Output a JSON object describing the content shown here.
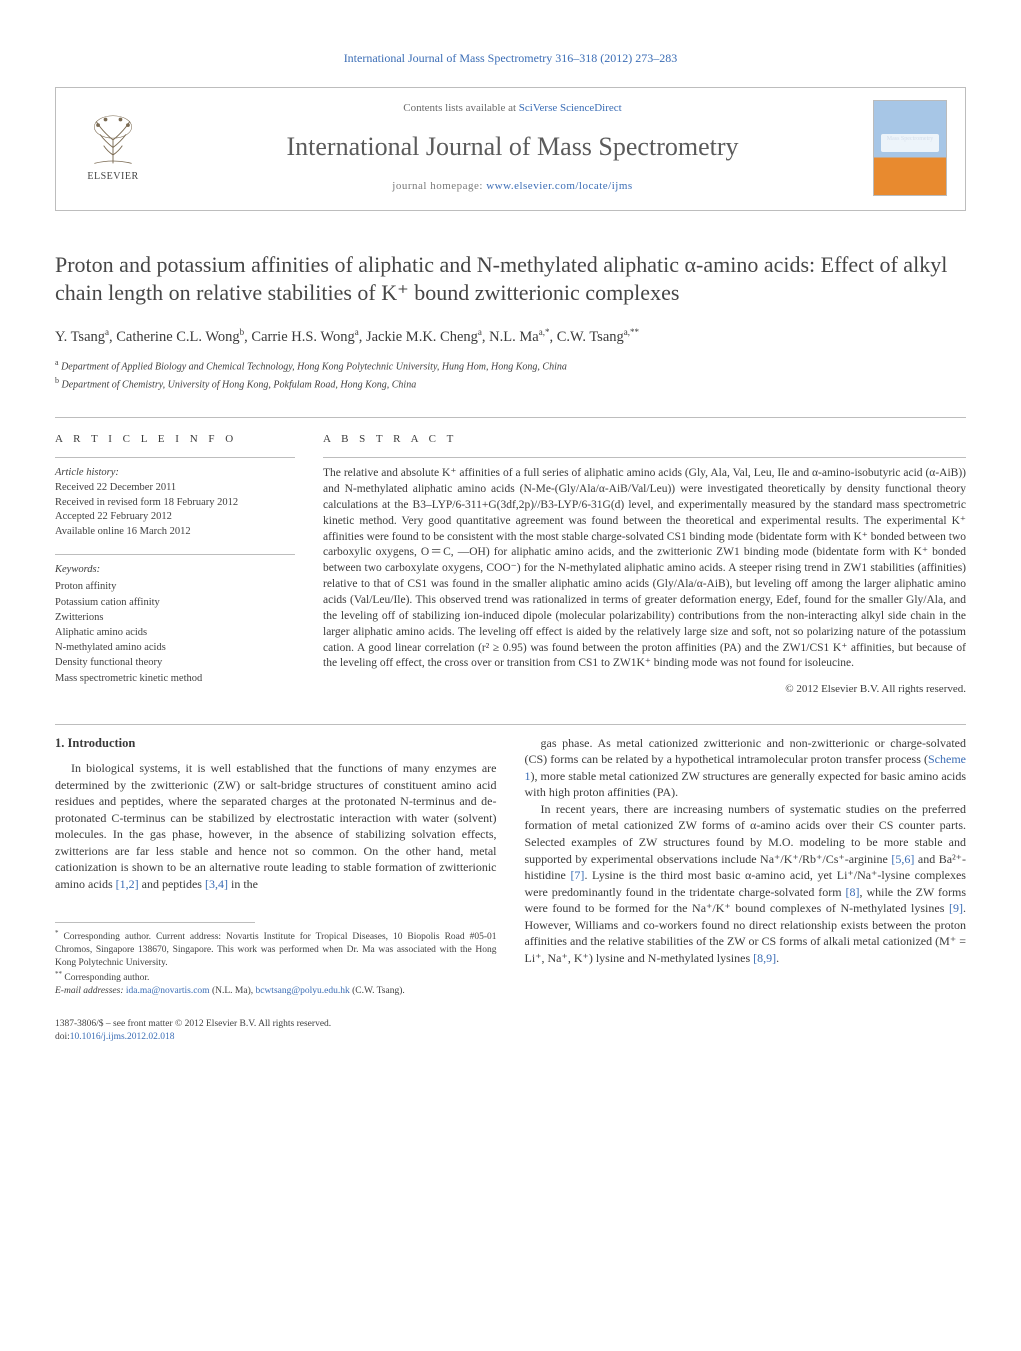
{
  "header": {
    "journal_ref": "International Journal of Mass Spectrometry 316–318 (2012) 273–283",
    "contents_prefix": "Contents lists available at ",
    "contents_link": "SciVerse ScienceDirect",
    "journal_name": "International Journal of Mass Spectrometry",
    "homepage_prefix": "journal homepage: ",
    "homepage_link": "www.elsevier.com/locate/ijms",
    "publisher": "ELSEVIER",
    "cover_caption": "Mass Spectrometry"
  },
  "article": {
    "title": "Proton and potassium affinities of aliphatic and N-methylated aliphatic α-amino acids: Effect of alkyl chain length on relative stabilities of K⁺ bound zwitterionic complexes",
    "authors_html": "Y. Tsang<sup>a</sup>, Catherine C.L. Wong<sup>b</sup>, Carrie H.S. Wong<sup>a</sup>, Jackie M.K. Cheng<sup>a</sup>, N.L. Ma<sup>a,*</sup>, C.W. Tsang<sup>a,**</sup>",
    "affiliations": [
      "Department of Applied Biology and Chemical Technology, Hong Kong Polytechnic University, Hung Hom, Hong Kong, China",
      "Department of Chemistry, University of Hong Kong, Pokfulam Road, Hong Kong, China"
    ],
    "aff_markers": [
      "a",
      "b"
    ]
  },
  "info": {
    "heading": "A R T I C L E   I N F O",
    "history_label": "Article history:",
    "history": [
      "Received 22 December 2011",
      "Received in revised form 18 February 2012",
      "Accepted 22 February 2012",
      "Available online 16 March 2012"
    ],
    "keywords_label": "Keywords:",
    "keywords": [
      "Proton affinity",
      "Potassium cation affinity",
      "Zwitterions",
      "Aliphatic amino acids",
      "N-methylated amino acids",
      "Density functional theory",
      "Mass spectrometric kinetic method"
    ]
  },
  "abstract": {
    "heading": "A B S T R A C T",
    "text": "The relative and absolute K⁺ affinities of a full series of aliphatic amino acids (Gly, Ala, Val, Leu, Ile and α-amino-isobutyric acid (α-AiB)) and N-methylated aliphatic amino acids (N-Me-(Gly/Ala/α-AiB/Val/Leu)) were investigated theoretically by density functional theory calculations at the B3–LYP/6-311+G(3df,2p)//B3-LYP/6-31G(d) level, and experimentally measured by the standard mass spectrometric kinetic method. Very good quantitative agreement was found between the theoretical and experimental results. The experimental K⁺ affinities were found to be consistent with the most stable charge-solvated CS1 binding mode (bidentate form with K⁺ bonded between two carboxylic oxygens, O＝C, —OH) for aliphatic amino acids, and the zwitterionic ZW1 binding mode (bidentate form with K⁺ bonded between two carboxylate oxygens, COO⁻) for the N-methylated aliphatic amino acids. A steeper rising trend in ZW1 stabilities (affinities) relative to that of CS1 was found in the smaller aliphatic amino acids (Gly/Ala/α-AiB), but leveling off among the larger aliphatic amino acids (Val/Leu/Ile). This observed trend was rationalized in terms of greater deformation energy, Edef, found for the smaller Gly/Ala, and the leveling off of stabilizing ion-induced dipole (molecular polarizability) contributions from the non-interacting alkyl side chain in the larger aliphatic amino acids. The leveling off effect is aided by the relatively large size and soft, not so polarizing nature of the potassium cation. A good linear correlation (r² ≥ 0.95) was found between the proton affinities (PA) and the ZW1/CS1 K⁺ affinities, but because of the leveling off effect, the cross over or transition from CS1 to ZW1K⁺ binding mode was not found for isoleucine.",
    "copyright": "© 2012 Elsevier B.V. All rights reserved."
  },
  "body": {
    "section_number": "1.",
    "section_title": "Introduction",
    "col1_p1": "In biological systems, it is well established that the functions of many enzymes are determined by the zwitterionic (ZW) or salt-bridge structures of constituent amino acid residues and peptides, where the separated charges at the protonated N-terminus and de-protonated C-terminus can be stabilized by electrostatic interaction with water (solvent) molecules. In the gas phase, however, in the absence of stabilizing solvation effects, zwitterions are far less stable and hence not so common. On the other hand, metal cationization is shown to be an alternative route leading to stable formation of zwitterionic amino acids [1,2] and peptides [3,4] in the",
    "col2_p1": "gas phase. As metal cationized zwitterionic and non-zwitterionic or charge-solvated (CS) forms can be related by a hypothetical intramolecular proton transfer process (Scheme 1), more stable metal cationized ZW structures are generally expected for basic amino acids with high proton affinities (PA).",
    "col2_p2": "In recent years, there are increasing numbers of systematic studies on the preferred formation of metal cationized ZW forms of α-amino acids over their CS counter parts. Selected examples of ZW structures found by M.O. modeling to be more stable and supported by experimental observations include Na⁺/K⁺/Rb⁺/Cs⁺-arginine [5,6] and Ba²⁺-histidine [7]. Lysine is the third most basic α-amino acid, yet Li⁺/Na⁺-lysine complexes were predominantly found in the tridentate charge-solvated form [8], while the ZW forms were found to be formed for the Na⁺/K⁺ bound complexes of N-methylated lysines [9]. However, Williams and co-workers found no direct relationship exists between the proton affinities and the relative stabilities of the ZW or CS forms of alkali metal cationized (M⁺ = Li⁺, Na⁺, K⁺) lysine and N-methylated lysines [8,9].",
    "refs": {
      "r12": "[1,2]",
      "r34": "[3,4]",
      "scheme1": "Scheme 1",
      "r56": "[5,6]",
      "r7": "[7]",
      "r8": "[8]",
      "r9": "[9]",
      "r89": "[8,9]"
    }
  },
  "footnotes": {
    "fn1_marker": "*",
    "fn1": "Corresponding author. Current address: Novartis Institute for Tropical Diseases, 10 Biopolis Road #05-01 Chromos, Singapore 138670, Singapore. This work was performed when Dr. Ma was associated with the Hong Kong Polytechnic University.",
    "fn2_marker": "**",
    "fn2": "Corresponding author.",
    "email_label": "E-mail addresses:",
    "email1": "ida.ma@novartis.com",
    "email1_who": "(N.L. Ma),",
    "email2": "bcwtsang@polyu.edu.hk",
    "email2_who": "(C.W. Tsang)."
  },
  "bottom": {
    "issn_line": "1387-3806/$ – see front matter © 2012 Elsevier B.V. All rights reserved.",
    "doi_label": "doi:",
    "doi": "10.1016/j.ijms.2012.02.018"
  },
  "colors": {
    "link": "#3b6db5",
    "rule": "#bdbdbd",
    "text": "#3a3a3a",
    "muted": "#6a6a6a"
  }
}
